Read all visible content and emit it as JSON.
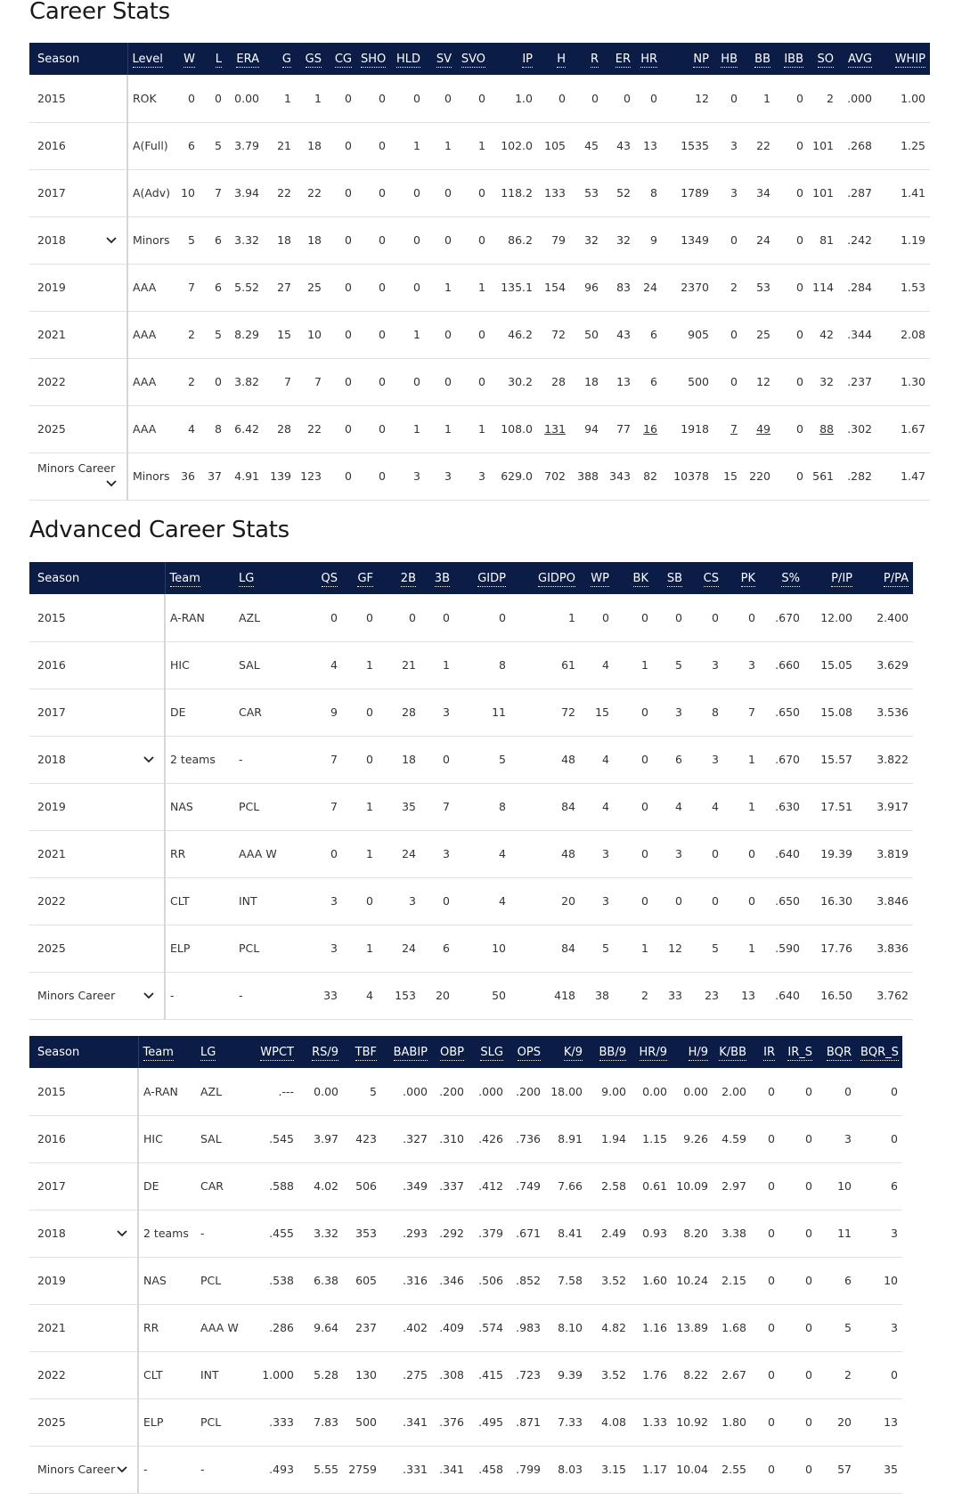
{
  "career": {
    "title": "Career Stats",
    "columns": [
      "Season",
      "Level",
      "W",
      "L",
      "ERA",
      "G",
      "GS",
      "CG",
      "SHO",
      "HLD",
      "SV",
      "SVO",
      "IP",
      "H",
      "R",
      "ER",
      "HR",
      "NP",
      "HB",
      "BB",
      "IBB",
      "SO",
      "AVG",
      "WHIP"
    ],
    "rows": [
      [
        "2015",
        "ROK",
        "0",
        "0",
        "0.00",
        "1",
        "1",
        "0",
        "0",
        "0",
        "0",
        "0",
        "1.0",
        "0",
        "0",
        "0",
        "0",
        "12",
        "0",
        "1",
        "0",
        "2",
        ".000",
        "1.00"
      ],
      [
        "2016",
        "A(Full)",
        "6",
        "5",
        "3.79",
        "21",
        "18",
        "0",
        "0",
        "1",
        "1",
        "1",
        "102.0",
        "105",
        "45",
        "43",
        "13",
        "1535",
        "3",
        "22",
        "0",
        "101",
        ".268",
        "1.25"
      ],
      [
        "2017",
        "A(Adv)",
        "10",
        "7",
        "3.94",
        "22",
        "22",
        "0",
        "0",
        "0",
        "0",
        "0",
        "118.2",
        "133",
        "53",
        "52",
        "8",
        "1789",
        "3",
        "34",
        "0",
        "101",
        ".287",
        "1.41"
      ],
      [
        "2018",
        "Minors",
        "5",
        "6",
        "3.32",
        "18",
        "18",
        "0",
        "0",
        "0",
        "0",
        "0",
        "86.2",
        "79",
        "32",
        "32",
        "9",
        "1349",
        "0",
        "24",
        "0",
        "81",
        ".242",
        "1.19"
      ],
      [
        "2019",
        "AAA",
        "7",
        "6",
        "5.52",
        "27",
        "25",
        "0",
        "0",
        "0",
        "1",
        "1",
        "135.1",
        "154",
        "96",
        "83",
        "24",
        "2370",
        "2",
        "53",
        "0",
        "114",
        ".284",
        "1.53"
      ],
      [
        "2021",
        "AAA",
        "2",
        "5",
        "8.29",
        "15",
        "10",
        "0",
        "0",
        "1",
        "0",
        "0",
        "46.2",
        "72",
        "50",
        "43",
        "6",
        "905",
        "0",
        "25",
        "0",
        "42",
        ".344",
        "2.08"
      ],
      [
        "2022",
        "AAA",
        "2",
        "0",
        "3.82",
        "7",
        "7",
        "0",
        "0",
        "0",
        "0",
        "0",
        "30.2",
        "28",
        "18",
        "13",
        "6",
        "500",
        "0",
        "12",
        "0",
        "32",
        ".237",
        "1.30"
      ],
      [
        "2025",
        "AAA",
        "4",
        "8",
        "6.42",
        "28",
        "22",
        "0",
        "0",
        "1",
        "1",
        "1",
        "108.0",
        "131",
        "94",
        "77",
        "16",
        "1918",
        "7",
        "49",
        "0",
        "88",
        ".302",
        "1.67"
      ],
      [
        "Minors Career",
        "Minors",
        "36",
        "37",
        "4.91",
        "139",
        "123",
        "0",
        "0",
        "3",
        "3",
        "3",
        "629.0",
        "702",
        "388",
        "343",
        "82",
        "10378",
        "15",
        "220",
        "0",
        "561",
        ".282",
        "1.47"
      ]
    ]
  },
  "advanced": {
    "title": "Advanced Career Stats",
    "table1": {
      "columns": [
        "Season",
        "Team",
        "LG",
        "QS",
        "GF",
        "2B",
        "3B",
        "GIDP",
        "GIDPO",
        "WP",
        "BK",
        "SB",
        "CS",
        "PK",
        "S%",
        "P/IP",
        "P/PA"
      ],
      "rows": [
        [
          "2015",
          "A-RAN",
          "AZL",
          "0",
          "0",
          "0",
          "0",
          "0",
          "1",
          "0",
          "0",
          "0",
          "0",
          "0",
          ".670",
          "12.00",
          "2.400"
        ],
        [
          "2016",
          "HIC",
          "SAL",
          "4",
          "1",
          "21",
          "1",
          "8",
          "61",
          "4",
          "1",
          "5",
          "3",
          "3",
          ".660",
          "15.05",
          "3.629"
        ],
        [
          "2017",
          "DE",
          "CAR",
          "9",
          "0",
          "28",
          "3",
          "11",
          "72",
          "15",
          "0",
          "3",
          "8",
          "7",
          ".650",
          "15.08",
          "3.536"
        ],
        [
          "2018",
          "2 teams",
          "-",
          "7",
          "0",
          "18",
          "0",
          "5",
          "48",
          "4",
          "0",
          "6",
          "3",
          "1",
          ".670",
          "15.57",
          "3.822"
        ],
        [
          "2019",
          "NAS",
          "PCL",
          "7",
          "1",
          "35",
          "7",
          "8",
          "84",
          "4",
          "0",
          "4",
          "4",
          "1",
          ".630",
          "17.51",
          "3.917"
        ],
        [
          "2021",
          "RR",
          "AAA W",
          "0",
          "1",
          "24",
          "3",
          "4",
          "48",
          "3",
          "0",
          "3",
          "0",
          "0",
          ".640",
          "19.39",
          "3.819"
        ],
        [
          "2022",
          "CLT",
          "INT",
          "3",
          "0",
          "3",
          "0",
          "4",
          "20",
          "3",
          "0",
          "0",
          "0",
          "0",
          ".650",
          "16.30",
          "3.846"
        ],
        [
          "2025",
          "ELP",
          "PCL",
          "3",
          "1",
          "24",
          "6",
          "10",
          "84",
          "5",
          "1",
          "12",
          "5",
          "1",
          ".590",
          "17.76",
          "3.836"
        ],
        [
          "Minors Career",
          "-",
          "-",
          "33",
          "4",
          "153",
          "20",
          "50",
          "418",
          "38",
          "2",
          "33",
          "23",
          "13",
          ".640",
          "16.50",
          "3.762"
        ]
      ]
    },
    "table2": {
      "columns": [
        "Season",
        "Team",
        "LG",
        "WPCT",
        "RS/9",
        "TBF",
        "BABIP",
        "OBP",
        "SLG",
        "OPS",
        "K/9",
        "BB/9",
        "HR/9",
        "H/9",
        "K/BB",
        "IR",
        "IR_S",
        "BQR",
        "BQR_S"
      ],
      "rows": [
        [
          "2015",
          "A-RAN",
          "AZL",
          ".---",
          "0.00",
          "5",
          ".000",
          ".200",
          ".000",
          ".200",
          "18.00",
          "9.00",
          "0.00",
          "0.00",
          "2.00",
          "0",
          "0",
          "0",
          "0"
        ],
        [
          "2016",
          "HIC",
          "SAL",
          ".545",
          "3.97",
          "423",
          ".327",
          ".310",
          ".426",
          ".736",
          "8.91",
          "1.94",
          "1.15",
          "9.26",
          "4.59",
          "0",
          "0",
          "3",
          "0"
        ],
        [
          "2017",
          "DE",
          "CAR",
          ".588",
          "4.02",
          "506",
          ".349",
          ".337",
          ".412",
          ".749",
          "7.66",
          "2.58",
          "0.61",
          "10.09",
          "2.97",
          "0",
          "0",
          "10",
          "6"
        ],
        [
          "2018",
          "2 teams",
          "-",
          ".455",
          "3.32",
          "353",
          ".293",
          ".292",
          ".379",
          ".671",
          "8.41",
          "2.49",
          "0.93",
          "8.20",
          "3.38",
          "0",
          "0",
          "11",
          "3"
        ],
        [
          "2019",
          "NAS",
          "PCL",
          ".538",
          "6.38",
          "605",
          ".316",
          ".346",
          ".506",
          ".852",
          "7.58",
          "3.52",
          "1.60",
          "10.24",
          "2.15",
          "0",
          "0",
          "6",
          "10"
        ],
        [
          "2021",
          "RR",
          "AAA W",
          ".286",
          "9.64",
          "237",
          ".402",
          ".409",
          ".574",
          ".983",
          "8.10",
          "4.82",
          "1.16",
          "13.89",
          "1.68",
          "0",
          "0",
          "5",
          "3"
        ],
        [
          "2022",
          "CLT",
          "INT",
          "1.000",
          "5.28",
          "130",
          ".275",
          ".308",
          ".415",
          ".723",
          "9.39",
          "3.52",
          "1.76",
          "8.22",
          "2.67",
          "0",
          "0",
          "2",
          "0"
        ],
        [
          "2025",
          "ELP",
          "PCL",
          ".333",
          "7.83",
          "500",
          ".341",
          ".376",
          ".495",
          ".871",
          "7.33",
          "4.08",
          "1.33",
          "10.92",
          "1.80",
          "0",
          "0",
          "20",
          "13"
        ],
        [
          "Minors Career",
          "-",
          "-",
          ".493",
          "5.55",
          "2759",
          ".331",
          ".341",
          ".458",
          ".799",
          "8.03",
          "3.15",
          "1.17",
          "10.04",
          "2.55",
          "0",
          "0",
          "57",
          "35"
        ]
      ]
    }
  },
  "icons": {
    "expand": "chevron-down-icon"
  },
  "colors": {
    "header_bg": "#0b1c47",
    "header_text": "#ffffff",
    "row_border": "#e1e1e1"
  }
}
